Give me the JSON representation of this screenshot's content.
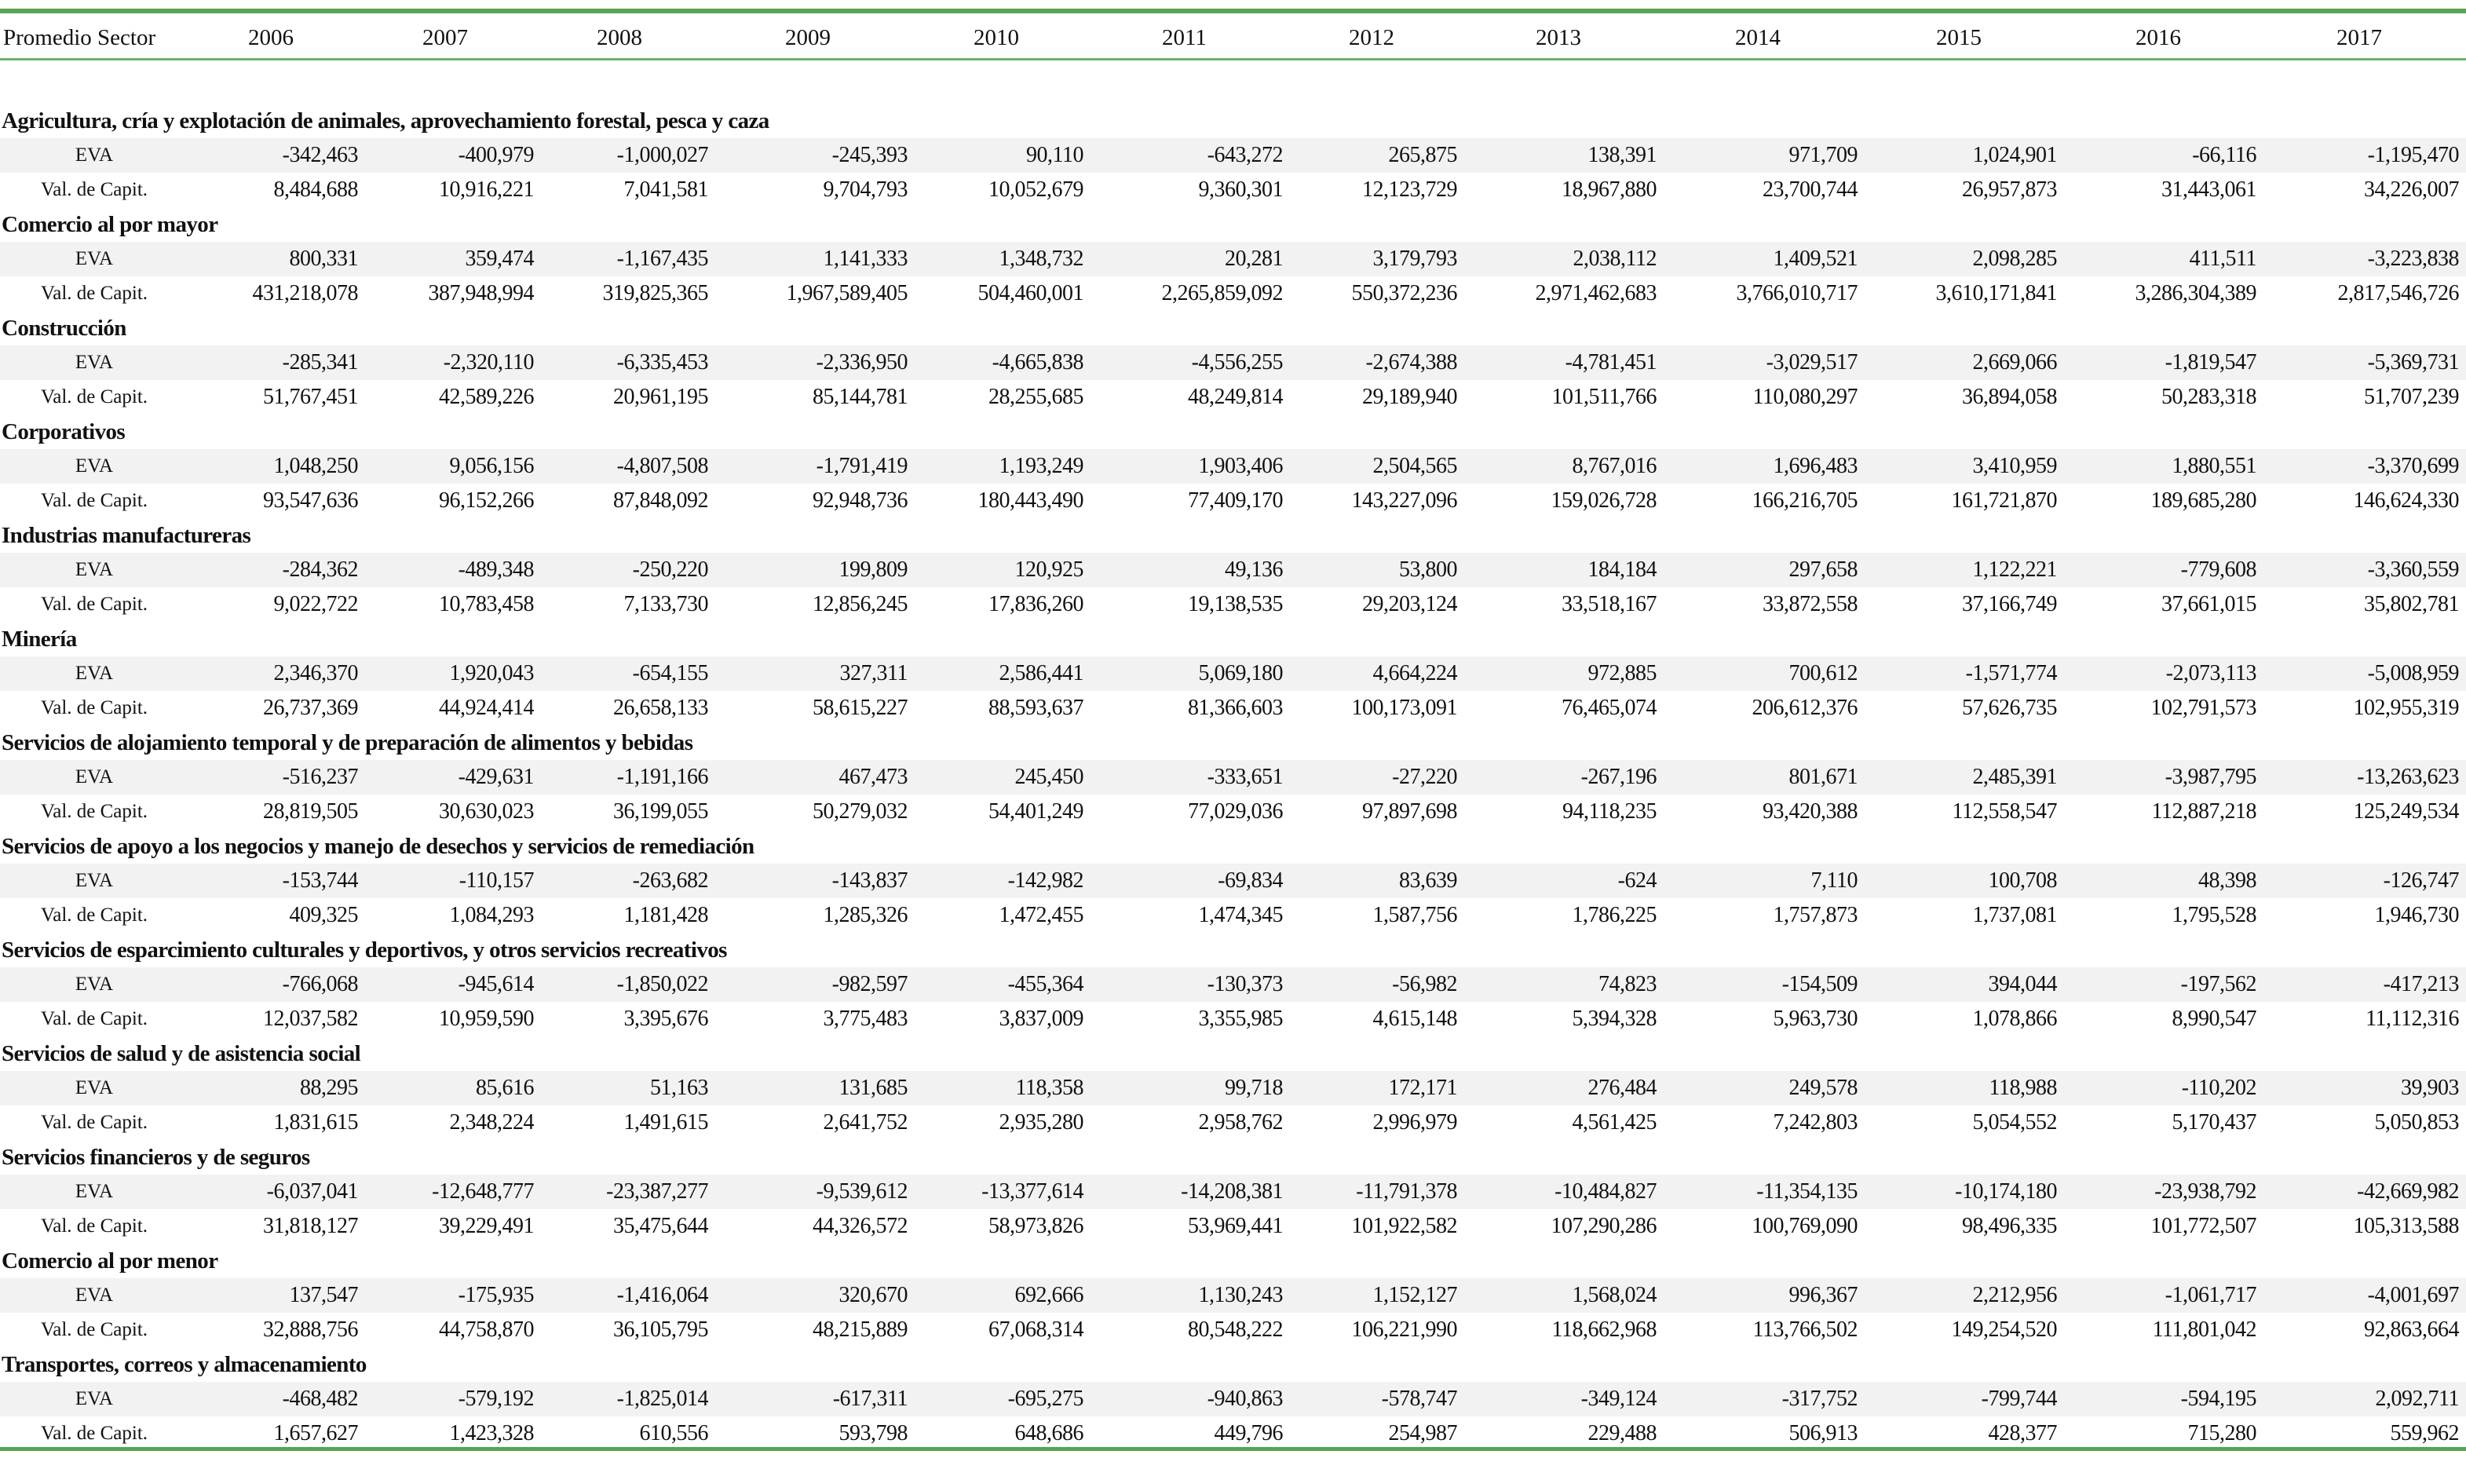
{
  "header": {
    "label": "Promedio Sector",
    "years": [
      "2006",
      "2007",
      "2008",
      "2009",
      "2010",
      "2011",
      "2012",
      "2013",
      "2014",
      "2015",
      "2016",
      "2017"
    ]
  },
  "row_labels": {
    "eva": "EVA",
    "val": "Val. de Capit."
  },
  "colors": {
    "rule": "#55a555",
    "band": "#f2f2f2"
  },
  "sectors": [
    {
      "name": "Agricultura, cría y explotación de animales, aprovechamiento forestal, pesca y caza",
      "eva": [
        "-342,463",
        "-400,979",
        "-1,000,027",
        "-245,393",
        "90,110",
        "-643,272",
        "265,875",
        "138,391",
        "971,709",
        "1,024,901",
        "-66,116",
        "-1,195,470"
      ],
      "val": [
        "8,484,688",
        "10,916,221",
        "7,041,581",
        "9,704,793",
        "10,052,679",
        "9,360,301",
        "12,123,729",
        "18,967,880",
        "23,700,744",
        "26,957,873",
        "31,443,061",
        "34,226,007"
      ]
    },
    {
      "name": "Comercio al por mayor",
      "eva": [
        "800,331",
        "359,474",
        "-1,167,435",
        "1,141,333",
        "1,348,732",
        "20,281",
        "3,179,793",
        "2,038,112",
        "1,409,521",
        "2,098,285",
        "411,511",
        "-3,223,838"
      ],
      "val": [
        "431,218,078",
        "387,948,994",
        "319,825,365",
        "1,967,589,405",
        "504,460,001",
        "2,265,859,092",
        "550,372,236",
        "2,971,462,683",
        "3,766,010,717",
        "3,610,171,841",
        "3,286,304,389",
        "2,817,546,726"
      ]
    },
    {
      "name": "Construcción",
      "eva": [
        "-285,341",
        "-2,320,110",
        "-6,335,453",
        "-2,336,950",
        "-4,665,838",
        "-4,556,255",
        "-2,674,388",
        "-4,781,451",
        "-3,029,517",
        "2,669,066",
        "-1,819,547",
        "-5,369,731"
      ],
      "val": [
        "51,767,451",
        "42,589,226",
        "20,961,195",
        "85,144,781",
        "28,255,685",
        "48,249,814",
        "29,189,940",
        "101,511,766",
        "110,080,297",
        "36,894,058",
        "50,283,318",
        "51,707,239"
      ]
    },
    {
      "name": "Corporativos",
      "eva": [
        "1,048,250",
        "9,056,156",
        "-4,807,508",
        "-1,791,419",
        "1,193,249",
        "1,903,406",
        "2,504,565",
        "8,767,016",
        "1,696,483",
        "3,410,959",
        "1,880,551",
        "-3,370,699"
      ],
      "val": [
        "93,547,636",
        "96,152,266",
        "87,848,092",
        "92,948,736",
        "180,443,490",
        "77,409,170",
        "143,227,096",
        "159,026,728",
        "166,216,705",
        "161,721,870",
        "189,685,280",
        "146,624,330"
      ]
    },
    {
      "name": "Industrias manufactureras",
      "eva": [
        "-284,362",
        "-489,348",
        "-250,220",
        "199,809",
        "120,925",
        "49,136",
        "53,800",
        "184,184",
        "297,658",
        "1,122,221",
        "-779,608",
        "-3,360,559"
      ],
      "val": [
        "9,022,722",
        "10,783,458",
        "7,133,730",
        "12,856,245",
        "17,836,260",
        "19,138,535",
        "29,203,124",
        "33,518,167",
        "33,872,558",
        "37,166,749",
        "37,661,015",
        "35,802,781"
      ]
    },
    {
      "name": "Minería",
      "eva": [
        "2,346,370",
        "1,920,043",
        "-654,155",
        "327,311",
        "2,586,441",
        "5,069,180",
        "4,664,224",
        "972,885",
        "700,612",
        "-1,571,774",
        "-2,073,113",
        "-5,008,959"
      ],
      "val": [
        "26,737,369",
        "44,924,414",
        "26,658,133",
        "58,615,227",
        "88,593,637",
        "81,366,603",
        "100,173,091",
        "76,465,074",
        "206,612,376",
        "57,626,735",
        "102,791,573",
        "102,955,319"
      ]
    },
    {
      "name": "Servicios de alojamiento temporal y de preparación de alimentos y bebidas",
      "eva": [
        "-516,237",
        "-429,631",
        "-1,191,166",
        "467,473",
        "245,450",
        "-333,651",
        "-27,220",
        "-267,196",
        "801,671",
        "2,485,391",
        "-3,987,795",
        "-13,263,623"
      ],
      "val": [
        "28,819,505",
        "30,630,023",
        "36,199,055",
        "50,279,032",
        "54,401,249",
        "77,029,036",
        "97,897,698",
        "94,118,235",
        "93,420,388",
        "112,558,547",
        "112,887,218",
        "125,249,534"
      ]
    },
    {
      "name": "Servicios de apoyo a los negocios y manejo de desechos y servicios de remediación",
      "eva": [
        "-153,744",
        "-110,157",
        "-263,682",
        "-143,837",
        "-142,982",
        "-69,834",
        "83,639",
        "-624",
        "7,110",
        "100,708",
        "48,398",
        "-126,747"
      ],
      "val": [
        "409,325",
        "1,084,293",
        "1,181,428",
        "1,285,326",
        "1,472,455",
        "1,474,345",
        "1,587,756",
        "1,786,225",
        "1,757,873",
        "1,737,081",
        "1,795,528",
        "1,946,730"
      ]
    },
    {
      "name": "Servicios de esparcimiento culturales y deportivos, y otros servicios recreativos",
      "eva": [
        "-766,068",
        "-945,614",
        "-1,850,022",
        "-982,597",
        "-455,364",
        "-130,373",
        "-56,982",
        "74,823",
        "-154,509",
        "394,044",
        "-197,562",
        "-417,213"
      ],
      "val": [
        "12,037,582",
        "10,959,590",
        "3,395,676",
        "3,775,483",
        "3,837,009",
        "3,355,985",
        "4,615,148",
        "5,394,328",
        "5,963,730",
        "1,078,866",
        "8,990,547",
        "11,112,316"
      ]
    },
    {
      "name": "Servicios de salud y de asistencia social",
      "eva": [
        "88,295",
        "85,616",
        "51,163",
        "131,685",
        "118,358",
        "99,718",
        "172,171",
        "276,484",
        "249,578",
        "118,988",
        "-110,202",
        "39,903"
      ],
      "val": [
        "1,831,615",
        "2,348,224",
        "1,491,615",
        "2,641,752",
        "2,935,280",
        "2,958,762",
        "2,996,979",
        "4,561,425",
        "7,242,803",
        "5,054,552",
        "5,170,437",
        "5,050,853"
      ]
    },
    {
      "name": "Servicios financieros y de seguros",
      "eva": [
        "-6,037,041",
        "-12,648,777",
        "-23,387,277",
        "-9,539,612",
        "-13,377,614",
        "-14,208,381",
        "-11,791,378",
        "-10,484,827",
        "-11,354,135",
        "-10,174,180",
        "-23,938,792",
        "-42,669,982"
      ],
      "val": [
        "31,818,127",
        "39,229,491",
        "35,475,644",
        "44,326,572",
        "58,973,826",
        "53,969,441",
        "101,922,582",
        "107,290,286",
        "100,769,090",
        "98,496,335",
        "101,772,507",
        "105,313,588"
      ]
    },
    {
      "name": "Comercio al por menor",
      "eva": [
        "137,547",
        "-175,935",
        "-1,416,064",
        "320,670",
        "692,666",
        "1,130,243",
        "1,152,127",
        "1,568,024",
        "996,367",
        "2,212,956",
        "-1,061,717",
        "-4,001,697"
      ],
      "val": [
        "32,888,756",
        "44,758,870",
        "36,105,795",
        "48,215,889",
        "67,068,314",
        "80,548,222",
        "106,221,990",
        "118,662,968",
        "113,766,502",
        "149,254,520",
        "111,801,042",
        "92,863,664"
      ]
    },
    {
      "name": "Transportes, correos y almacenamiento",
      "eva": [
        "-468,482",
        "-579,192",
        "-1,825,014",
        "-617,311",
        "-695,275",
        "-940,863",
        "-578,747",
        "-349,124",
        "-317,752",
        "-799,744",
        "-594,195",
        "2,092,711"
      ],
      "val": [
        "1,657,627",
        "1,423,328",
        "610,556",
        "593,798",
        "648,686",
        "449,796",
        "254,987",
        "229,488",
        "506,913",
        "428,377",
        "715,280",
        "559,962"
      ]
    }
  ]
}
